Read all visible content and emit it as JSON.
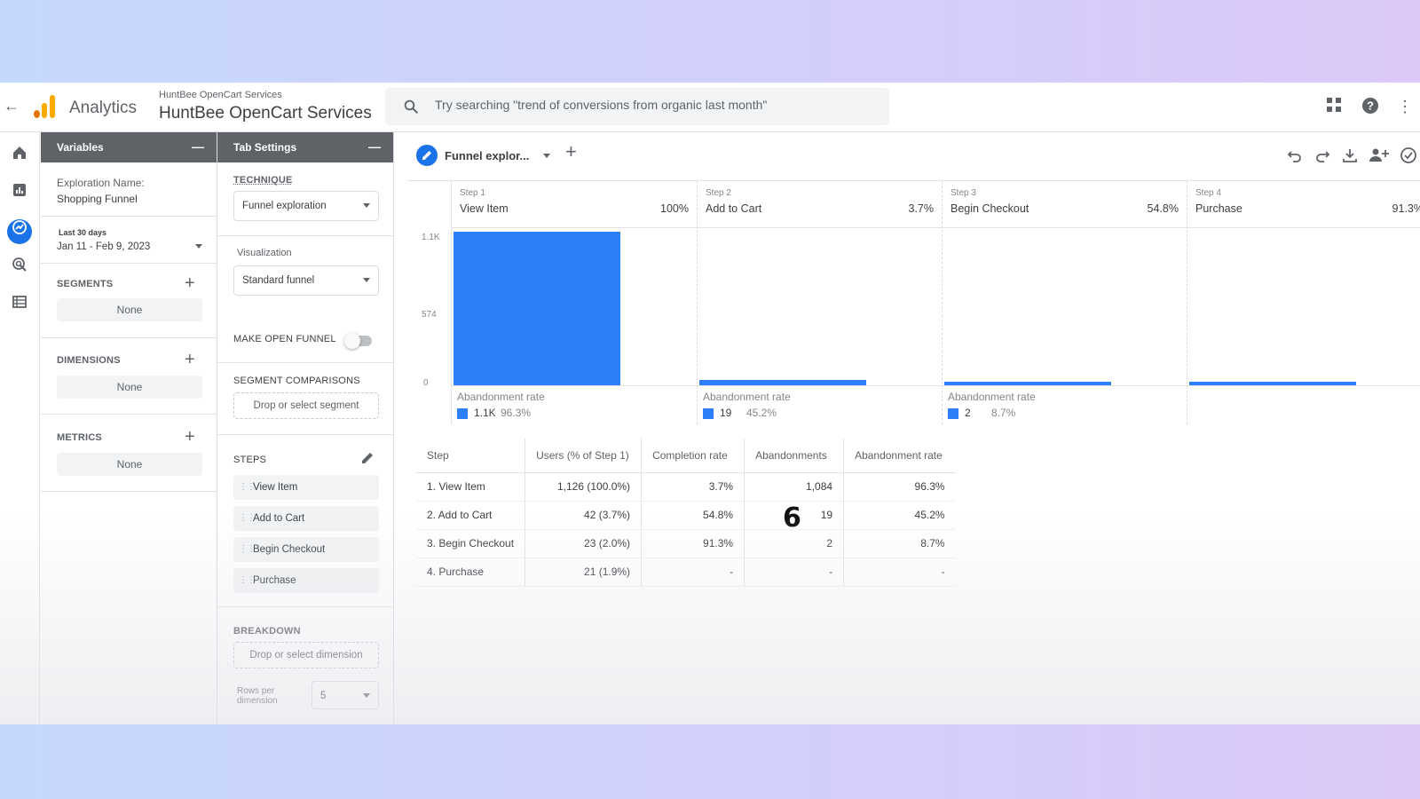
{
  "topbar": {
    "app_name": "Analytics",
    "property_small": "HuntBee OpenCart Services",
    "property_name": "HuntBee OpenCart Services",
    "search_placeholder": "Try searching \"trend of conversions from organic last month\""
  },
  "variables": {
    "title": "Variables",
    "exploration_name_label": "Exploration Name:",
    "exploration_name": "Shopping Funnel",
    "date_caption": "Last 30 days",
    "date_range": "Jan 11 - Feb 9, 2023",
    "segments_label": "SEGMENTS",
    "segments_value": "None",
    "dimensions_label": "DIMENSIONS",
    "dimensions_value": "None",
    "metrics_label": "METRICS",
    "metrics_value": "None"
  },
  "tab_settings": {
    "title": "Tab Settings",
    "technique_label": "TECHNIQUE",
    "technique_value": "Funnel exploration",
    "visualization_label": "Visualization",
    "visualization_value": "Standard funnel",
    "open_funnel_label": "MAKE OPEN FUNNEL",
    "open_funnel_on": false,
    "segment_comparisons_label": "SEGMENT COMPARISONS",
    "segment_comparisons_placeholder": "Drop or select segment",
    "steps_label": "STEPS",
    "steps": [
      "View Item",
      "Add to Cart",
      "Begin Checkout",
      "Purchase"
    ],
    "breakdown_label": "BREAKDOWN",
    "breakdown_placeholder": "Drop or select dimension",
    "rows_per_dimension_label": "Rows per dimension",
    "rows_per_dimension_value": "5"
  },
  "main": {
    "tab_label": "Funnel explor...",
    "y_ticks": [
      "1.1K",
      "574",
      "0"
    ],
    "abandonment_label": "Abandonment rate",
    "steps": [
      {
        "step": "Step 1",
        "name": "View Item",
        "pct": "100%",
        "users": 1126,
        "aband_count": "1.1K",
        "aband_rate": "96.3%"
      },
      {
        "step": "Step 2",
        "name": "Add to Cart",
        "pct": "3.7%",
        "users": 42,
        "aband_count": "19",
        "aband_rate": "45.2%"
      },
      {
        "step": "Step 3",
        "name": "Begin Checkout",
        "pct": "54.8%",
        "users": 23,
        "aband_count": "2",
        "aband_rate": "8.7%"
      },
      {
        "step": "Step 4",
        "name": "Purchase",
        "pct": "91.3%",
        "users": 21,
        "aband_count": "",
        "aband_rate": ""
      }
    ],
    "overlay_number": "6",
    "table": {
      "headers": [
        "Step",
        "Users (% of Step 1)",
        "Completion rate",
        "Abandonments",
        "Abandonment rate"
      ],
      "rows": [
        [
          "1. View Item",
          "1,126 (100.0%)",
          "3.7%",
          "1,084",
          "96.3%"
        ],
        [
          "2. Add to Cart",
          "42 (3.7%)",
          "54.8%",
          "19",
          "45.2%"
        ],
        [
          "3. Begin Checkout",
          "23 (2.0%)",
          "91.3%",
          "2",
          "8.7%"
        ],
        [
          "4. Purchase",
          "21 (1.9%)",
          "-",
          "-",
          "-"
        ]
      ]
    }
  },
  "colors": {
    "accent": "#1a73e8",
    "bar": "#2d7ff9",
    "logo_orange": "#f9ab00",
    "logo_dark_orange": "#e37400"
  }
}
